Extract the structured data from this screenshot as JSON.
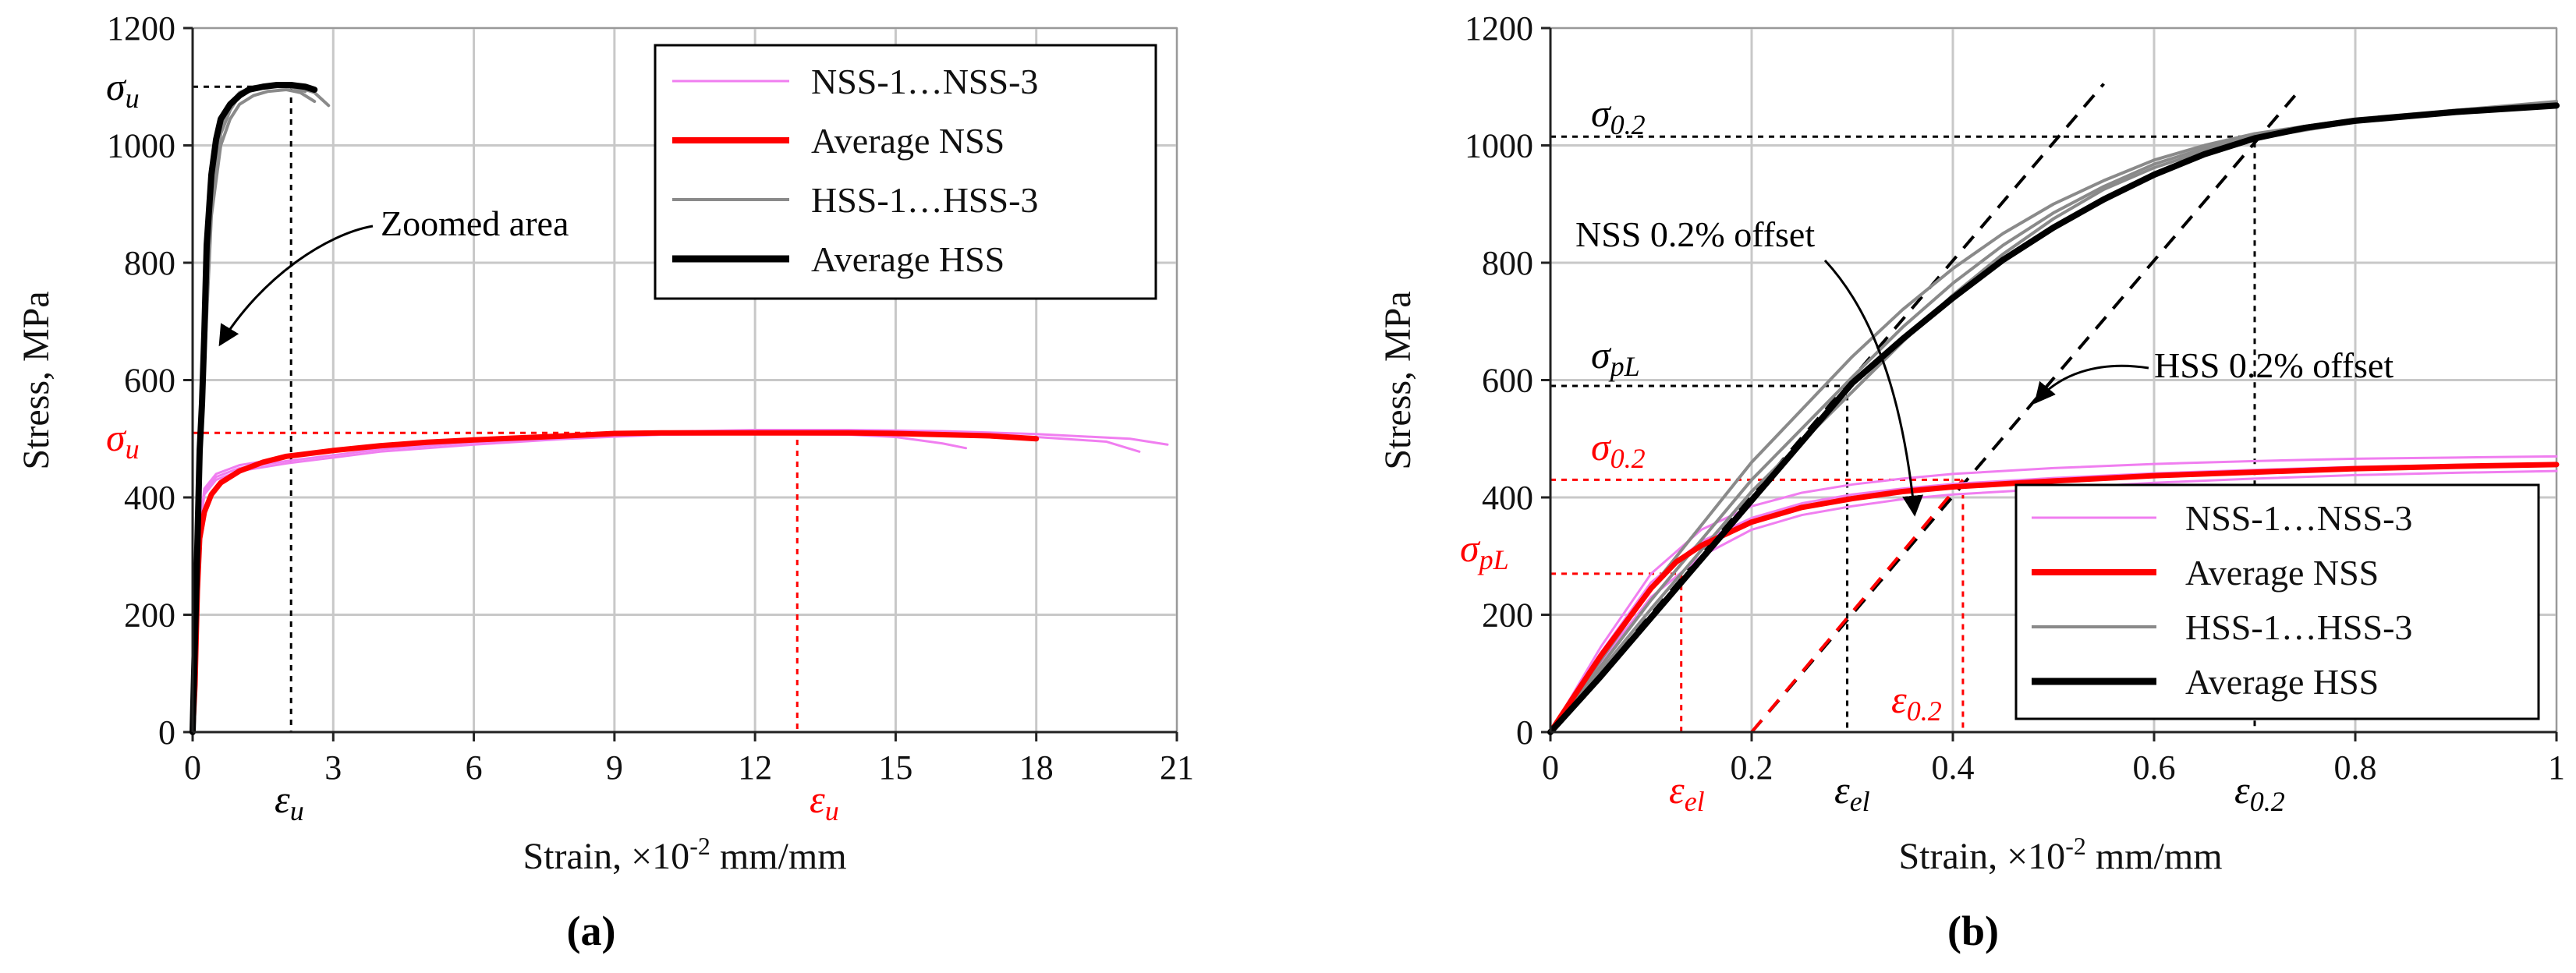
{
  "colors": {
    "nss_specimen": "#f07ef0",
    "nss_avg": "#ff0000",
    "hss_specimen": "#8a8a8a",
    "hss_avg": "#000000",
    "grid": "#c8c8c8",
    "ann_red": "#ff0000",
    "ann_black": "#000000"
  },
  "legend": {
    "nss_specimens": "NSS-1…NSS-3",
    "nss_average": "Average NSS",
    "hss_specimens": "HSS-1…HSS-3",
    "hss_average": "Average HSS"
  },
  "chart_data": [
    {
      "id": "a",
      "type": "line",
      "caption": "(a)",
      "xlabel": "Strain, ×10",
      "xlabel_exp": "-2",
      "xlabel_unit": " mm/mm",
      "ylabel": "Stress, MPa",
      "xlim": [
        0,
        21
      ],
      "ylim": [
        0,
        1200
      ],
      "xticks": [
        "0",
        "3",
        "6",
        "9",
        "12",
        "15",
        "18",
        "21"
      ],
      "xtick_values": [
        0,
        3,
        6,
        9,
        12,
        15,
        18,
        21
      ],
      "yticks": [
        "0",
        "200",
        "400",
        "600",
        "800",
        "1000",
        "1200"
      ],
      "ytick_values": [
        0,
        200,
        400,
        600,
        800,
        1000,
        1200
      ],
      "grid": true,
      "legend_position": "top-right",
      "series": [
        {
          "name": "NSS-1",
          "group": "nss_specimen",
          "x": [
            0,
            0.1,
            0.25,
            0.5,
            1,
            2,
            3,
            4,
            6,
            8,
            10,
            12,
            14,
            15,
            16,
            16.5
          ],
          "y": [
            0,
            300,
            410,
            435,
            450,
            462,
            472,
            482,
            494,
            502,
            507,
            508,
            507,
            503,
            492,
            484
          ]
        },
        {
          "name": "NSS-2",
          "group": "nss_specimen",
          "x": [
            0,
            0.1,
            0.25,
            0.5,
            1,
            2,
            3,
            4,
            6,
            8,
            10,
            12,
            14,
            16,
            18,
            19.5,
            20.2
          ],
          "y": [
            0,
            310,
            405,
            430,
            445,
            458,
            468,
            478,
            490,
            500,
            507,
            510,
            510,
            508,
            503,
            495,
            478
          ]
        },
        {
          "name": "NSS-3",
          "group": "nss_specimen",
          "x": [
            0,
            0.1,
            0.25,
            0.5,
            1,
            2,
            3,
            4,
            6,
            8,
            10,
            12,
            14,
            16,
            18,
            20,
            20.8
          ],
          "y": [
            0,
            320,
            415,
            440,
            455,
            468,
            478,
            486,
            497,
            505,
            512,
            515,
            515,
            513,
            508,
            500,
            490
          ]
        },
        {
          "name": "Average NSS",
          "group": "nss_avg",
          "x": [
            0,
            0.05,
            0.1,
            0.15,
            0.25,
            0.4,
            0.6,
            1,
            1.5,
            2,
            3,
            4,
            5,
            6,
            8,
            9,
            10,
            12,
            14,
            15,
            16,
            17,
            18
          ],
          "y": [
            0,
            80,
            240,
            330,
            375,
            405,
            425,
            445,
            460,
            470,
            480,
            488,
            494,
            498,
            505,
            509,
            510,
            510,
            510,
            509,
            507,
            505,
            500
          ]
        },
        {
          "name": "HSS-1",
          "group": "hss_specimen",
          "x": [
            0,
            0.2,
            0.4,
            0.6,
            0.8,
            1,
            1.3,
            1.6,
            2,
            2.3,
            2.6,
            2.9
          ],
          "y": [
            0,
            560,
            900,
            1020,
            1060,
            1085,
            1095,
            1100,
            1100,
            1098,
            1090,
            1068
          ]
        },
        {
          "name": "HSS-2",
          "group": "hss_specimen",
          "x": [
            0,
            0.2,
            0.4,
            0.6,
            0.8,
            1,
            1.3,
            1.6,
            2,
            2.3,
            2.6
          ],
          "y": [
            0,
            540,
            880,
            1000,
            1045,
            1070,
            1085,
            1092,
            1095,
            1090,
            1075
          ]
        },
        {
          "name": "HSS-3",
          "group": "hss_specimen",
          "x": [
            0,
            0.2,
            0.4,
            0.6,
            0.8,
            1,
            1.3,
            1.6,
            2,
            2.4
          ],
          "y": [
            0,
            580,
            910,
            1030,
            1070,
            1090,
            1100,
            1103,
            1102,
            1092
          ]
        },
        {
          "name": "Average HSS",
          "group": "hss_avg",
          "x": [
            0,
            0.08,
            0.15,
            0.2,
            0.25,
            0.3,
            0.4,
            0.5,
            0.6,
            0.8,
            1,
            1.2,
            1.5,
            1.8,
            2.1,
            2.4,
            2.6
          ],
          "y": [
            0,
            250,
            480,
            560,
            680,
            830,
            950,
            1010,
            1045,
            1070,
            1085,
            1095,
            1100,
            1103,
            1103,
            1100,
            1095
          ]
        }
      ],
      "ref_lines": [
        {
          "color": "black",
          "points": [
            [
              0,
              1100
            ],
            [
              2.1,
              1100
            ],
            [
              2.1,
              0
            ]
          ]
        },
        {
          "color": "red",
          "points": [
            [
              0,
              510
            ],
            [
              12.9,
              510
            ],
            [
              12.9,
              0
            ]
          ]
        }
      ],
      "annotations": {
        "sigma_u_black": "σ",
        "sigma_u_black_sub": "u",
        "sigma_u_red": "σ",
        "sigma_u_red_sub": "u",
        "eps_u_black": "ε",
        "eps_u_black_sub": "u",
        "eps_u_red": "ε",
        "eps_u_red_sub": "u",
        "zoomed_area": "Zoomed area"
      }
    },
    {
      "id": "b",
      "type": "line",
      "caption": "(b)",
      "xlabel": "Strain, ×10",
      "xlabel_exp": "-2",
      "xlabel_unit": " mm/mm",
      "ylabel": "Stress, MPa",
      "xlim": [
        0,
        1
      ],
      "ylim": [
        0,
        1200
      ],
      "xticks": [
        "0",
        "0.2",
        "0.4",
        "0.6",
        "0.8",
        "1"
      ],
      "xtick_values": [
        0,
        0.2,
        0.4,
        0.6,
        0.8,
        1
      ],
      "yticks": [
        "0",
        "200",
        "400",
        "600",
        "800",
        "1000",
        "1200"
      ],
      "ytick_values": [
        0,
        200,
        400,
        600,
        800,
        1000,
        1200
      ],
      "grid": true,
      "legend_position": "bottom-right",
      "series": [
        {
          "name": "NSS-1",
          "group": "nss_specimen",
          "x": [
            0,
            0.05,
            0.1,
            0.15,
            0.2,
            0.25,
            0.3,
            0.35,
            0.4,
            0.5,
            0.6,
            0.7,
            0.8,
            0.9,
            1.0
          ],
          "y": [
            0,
            120,
            230,
            300,
            345,
            370,
            385,
            397,
            405,
            415,
            425,
            432,
            438,
            442,
            445
          ]
        },
        {
          "name": "NSS-2",
          "group": "nss_specimen",
          "x": [
            0,
            0.05,
            0.1,
            0.15,
            0.2,
            0.25,
            0.3,
            0.35,
            0.4,
            0.5,
            0.6,
            0.7,
            0.8,
            0.9,
            1.0
          ],
          "y": [
            0,
            135,
            255,
            325,
            365,
            390,
            405,
            415,
            423,
            433,
            441,
            447,
            452,
            455,
            458
          ]
        },
        {
          "name": "NSS-3",
          "group": "nss_specimen",
          "x": [
            0,
            0.05,
            0.1,
            0.15,
            0.2,
            0.25,
            0.3,
            0.35,
            0.4,
            0.5,
            0.6,
            0.7,
            0.8,
            0.9,
            1.0
          ],
          "y": [
            0,
            145,
            270,
            345,
            385,
            408,
            422,
            432,
            440,
            450,
            457,
            462,
            466,
            468,
            470
          ]
        },
        {
          "name": "Average NSS",
          "group": "nss_avg",
          "x": [
            0,
            0.05,
            0.1,
            0.125,
            0.15,
            0.2,
            0.25,
            0.3,
            0.35,
            0.4,
            0.5,
            0.6,
            0.7,
            0.8,
            0.9,
            1.0
          ],
          "y": [
            0,
            130,
            245,
            290,
            318,
            358,
            383,
            398,
            410,
            418,
            428,
            437,
            443,
            449,
            453,
            456
          ]
        },
        {
          "name": "HSS-1",
          "group": "hss_specimen",
          "x": [
            0,
            0.1,
            0.2,
            0.3,
            0.35,
            0.4,
            0.45,
            0.5,
            0.55,
            0.6,
            0.65,
            0.7,
            0.8,
            0.9,
            1.0
          ],
          "y": [
            0,
            245,
            460,
            640,
            720,
            790,
            850,
            900,
            940,
            975,
            1000,
            1020,
            1045,
            1060,
            1075
          ]
        },
        {
          "name": "HSS-2",
          "group": "hss_specimen",
          "x": [
            0,
            0.1,
            0.2,
            0.3,
            0.35,
            0.4,
            0.45,
            0.5,
            0.55,
            0.6,
            0.65,
            0.7,
            0.8,
            0.9,
            1.0
          ],
          "y": [
            0,
            225,
            430,
            605,
            690,
            765,
            830,
            885,
            930,
            968,
            995,
            1018,
            1043,
            1060,
            1073
          ]
        },
        {
          "name": "HSS-3",
          "group": "hss_specimen",
          "x": [
            0,
            0.1,
            0.2,
            0.3,
            0.35,
            0.4,
            0.45,
            0.5,
            0.55,
            0.6,
            0.65,
            0.7,
            0.8,
            0.9,
            1.0
          ],
          "y": [
            0,
            210,
            410,
            580,
            665,
            745,
            815,
            875,
            925,
            962,
            990,
            1012,
            1040,
            1057,
            1070
          ]
        },
        {
          "name": "Average HSS",
          "group": "hss_avg",
          "x": [
            0,
            0.05,
            0.1,
            0.15,
            0.2,
            0.25,
            0.3,
            0.35,
            0.4,
            0.45,
            0.5,
            0.55,
            0.6,
            0.65,
            0.7,
            0.75,
            0.8,
            0.9,
            1.0
          ],
          "y": [
            0,
            95,
            195,
            295,
            395,
            495,
            595,
            670,
            740,
            805,
            860,
            908,
            950,
            985,
            1012,
            1030,
            1042,
            1057,
            1068
          ]
        }
      ],
      "offset_lines": [
        {
          "color": "black",
          "points": [
            [
              0,
              0
            ],
            [
              0.55,
              1105
            ]
          ]
        },
        {
          "color": "black",
          "points": [
            [
              0.2,
              0
            ],
            [
              0.74,
              1085
            ]
          ]
        },
        {
          "color": "red",
          "points": [
            [
              0.2,
              0
            ],
            [
              0.41,
              430
            ]
          ]
        }
      ],
      "ref_lines": [
        {
          "color": "black",
          "points": [
            [
              0,
              1015
            ],
            [
              0.7,
              1015
            ],
            [
              0.7,
              0
            ]
          ]
        },
        {
          "color": "black",
          "points": [
            [
              0,
              590
            ],
            [
              0.295,
              590
            ],
            [
              0.295,
              0
            ]
          ]
        },
        {
          "color": "red",
          "points": [
            [
              0,
              430
            ],
            [
              0.41,
              430
            ],
            [
              0.41,
              0
            ]
          ]
        },
        {
          "color": "red",
          "points": [
            [
              0,
              270
            ],
            [
              0.13,
              270
            ],
            [
              0.13,
              0
            ]
          ]
        }
      ],
      "annotations": {
        "sigma": "σ",
        "sigma02_black_sub": "0.2",
        "sigma_pl_black_sub": "pL",
        "sigma02_red_sub": "0.2",
        "sigma_pl_red_sub": "pL",
        "eps": "ε",
        "eps_el_red_sub": "el",
        "eps_el_black_sub": "el",
        "eps02_black_sub": "0.2",
        "eps02_red_sub": "0.2",
        "nss_offset": "NSS 0.2% offset",
        "hss_offset": "HSS 0.2% offset"
      }
    }
  ]
}
